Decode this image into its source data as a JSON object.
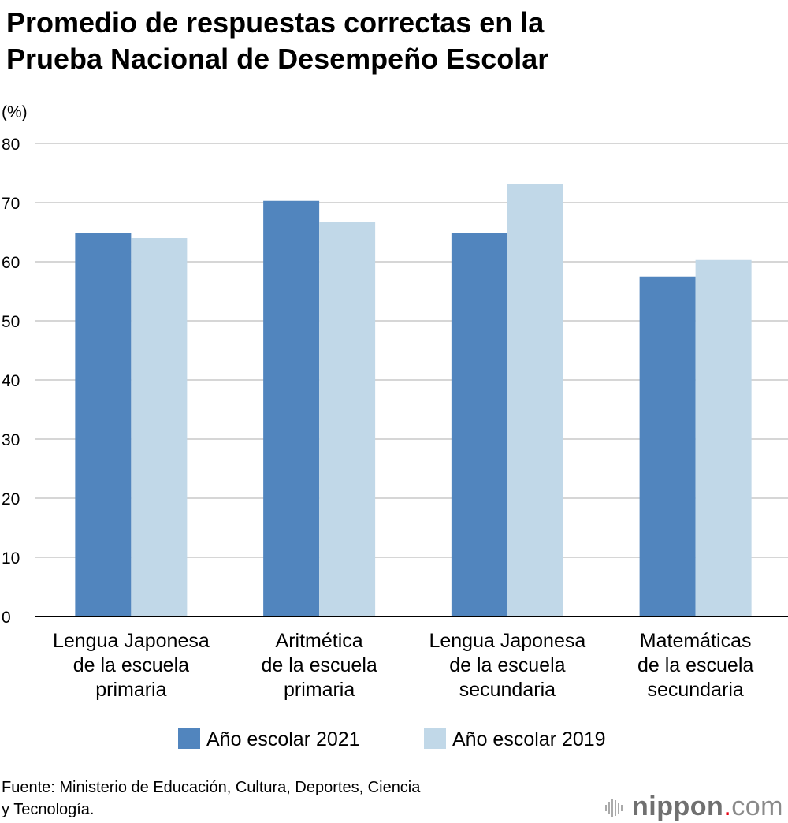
{
  "chart_data": {
    "type": "bar",
    "title": "Promedio de respuestas correctas en la Prueba Nacional de Desempeño Escolar",
    "title_lines": [
      "Promedio de respuestas correctas en la",
      "Prueba Nacional de Desempeño Escolar"
    ],
    "ylabel": "(%)",
    "xlabel": "",
    "ylim": [
      0,
      80
    ],
    "yticks": [
      0,
      10,
      20,
      30,
      40,
      50,
      60,
      70,
      80
    ],
    "grid": true,
    "legend_position": "bottom",
    "categories": [
      [
        "Lengua Japonesa",
        "de la escuela",
        "primaria"
      ],
      [
        "Aritmética",
        "de la escuela",
        "primaria"
      ],
      [
        "Lengua Japonesa",
        "de la escuela",
        "secundaria"
      ],
      [
        "Matemáticas",
        "de la escuela",
        "secundaria"
      ]
    ],
    "series": [
      {
        "name": "Año escolar 2021",
        "color": "#5185be",
        "values": [
          64.9,
          70.3,
          64.9,
          57.5
        ]
      },
      {
        "name": "Año escolar 2019",
        "color": "#c1d8e8",
        "values": [
          64.0,
          66.7,
          73.2,
          60.3
        ]
      }
    ]
  },
  "source": [
    "Fuente: Ministerio de Educación, Cultura, Deportes, Ciencia",
    "y Tecnología."
  ],
  "logo": {
    "main": "nippon",
    "dot": ".",
    "suffix": "com"
  }
}
